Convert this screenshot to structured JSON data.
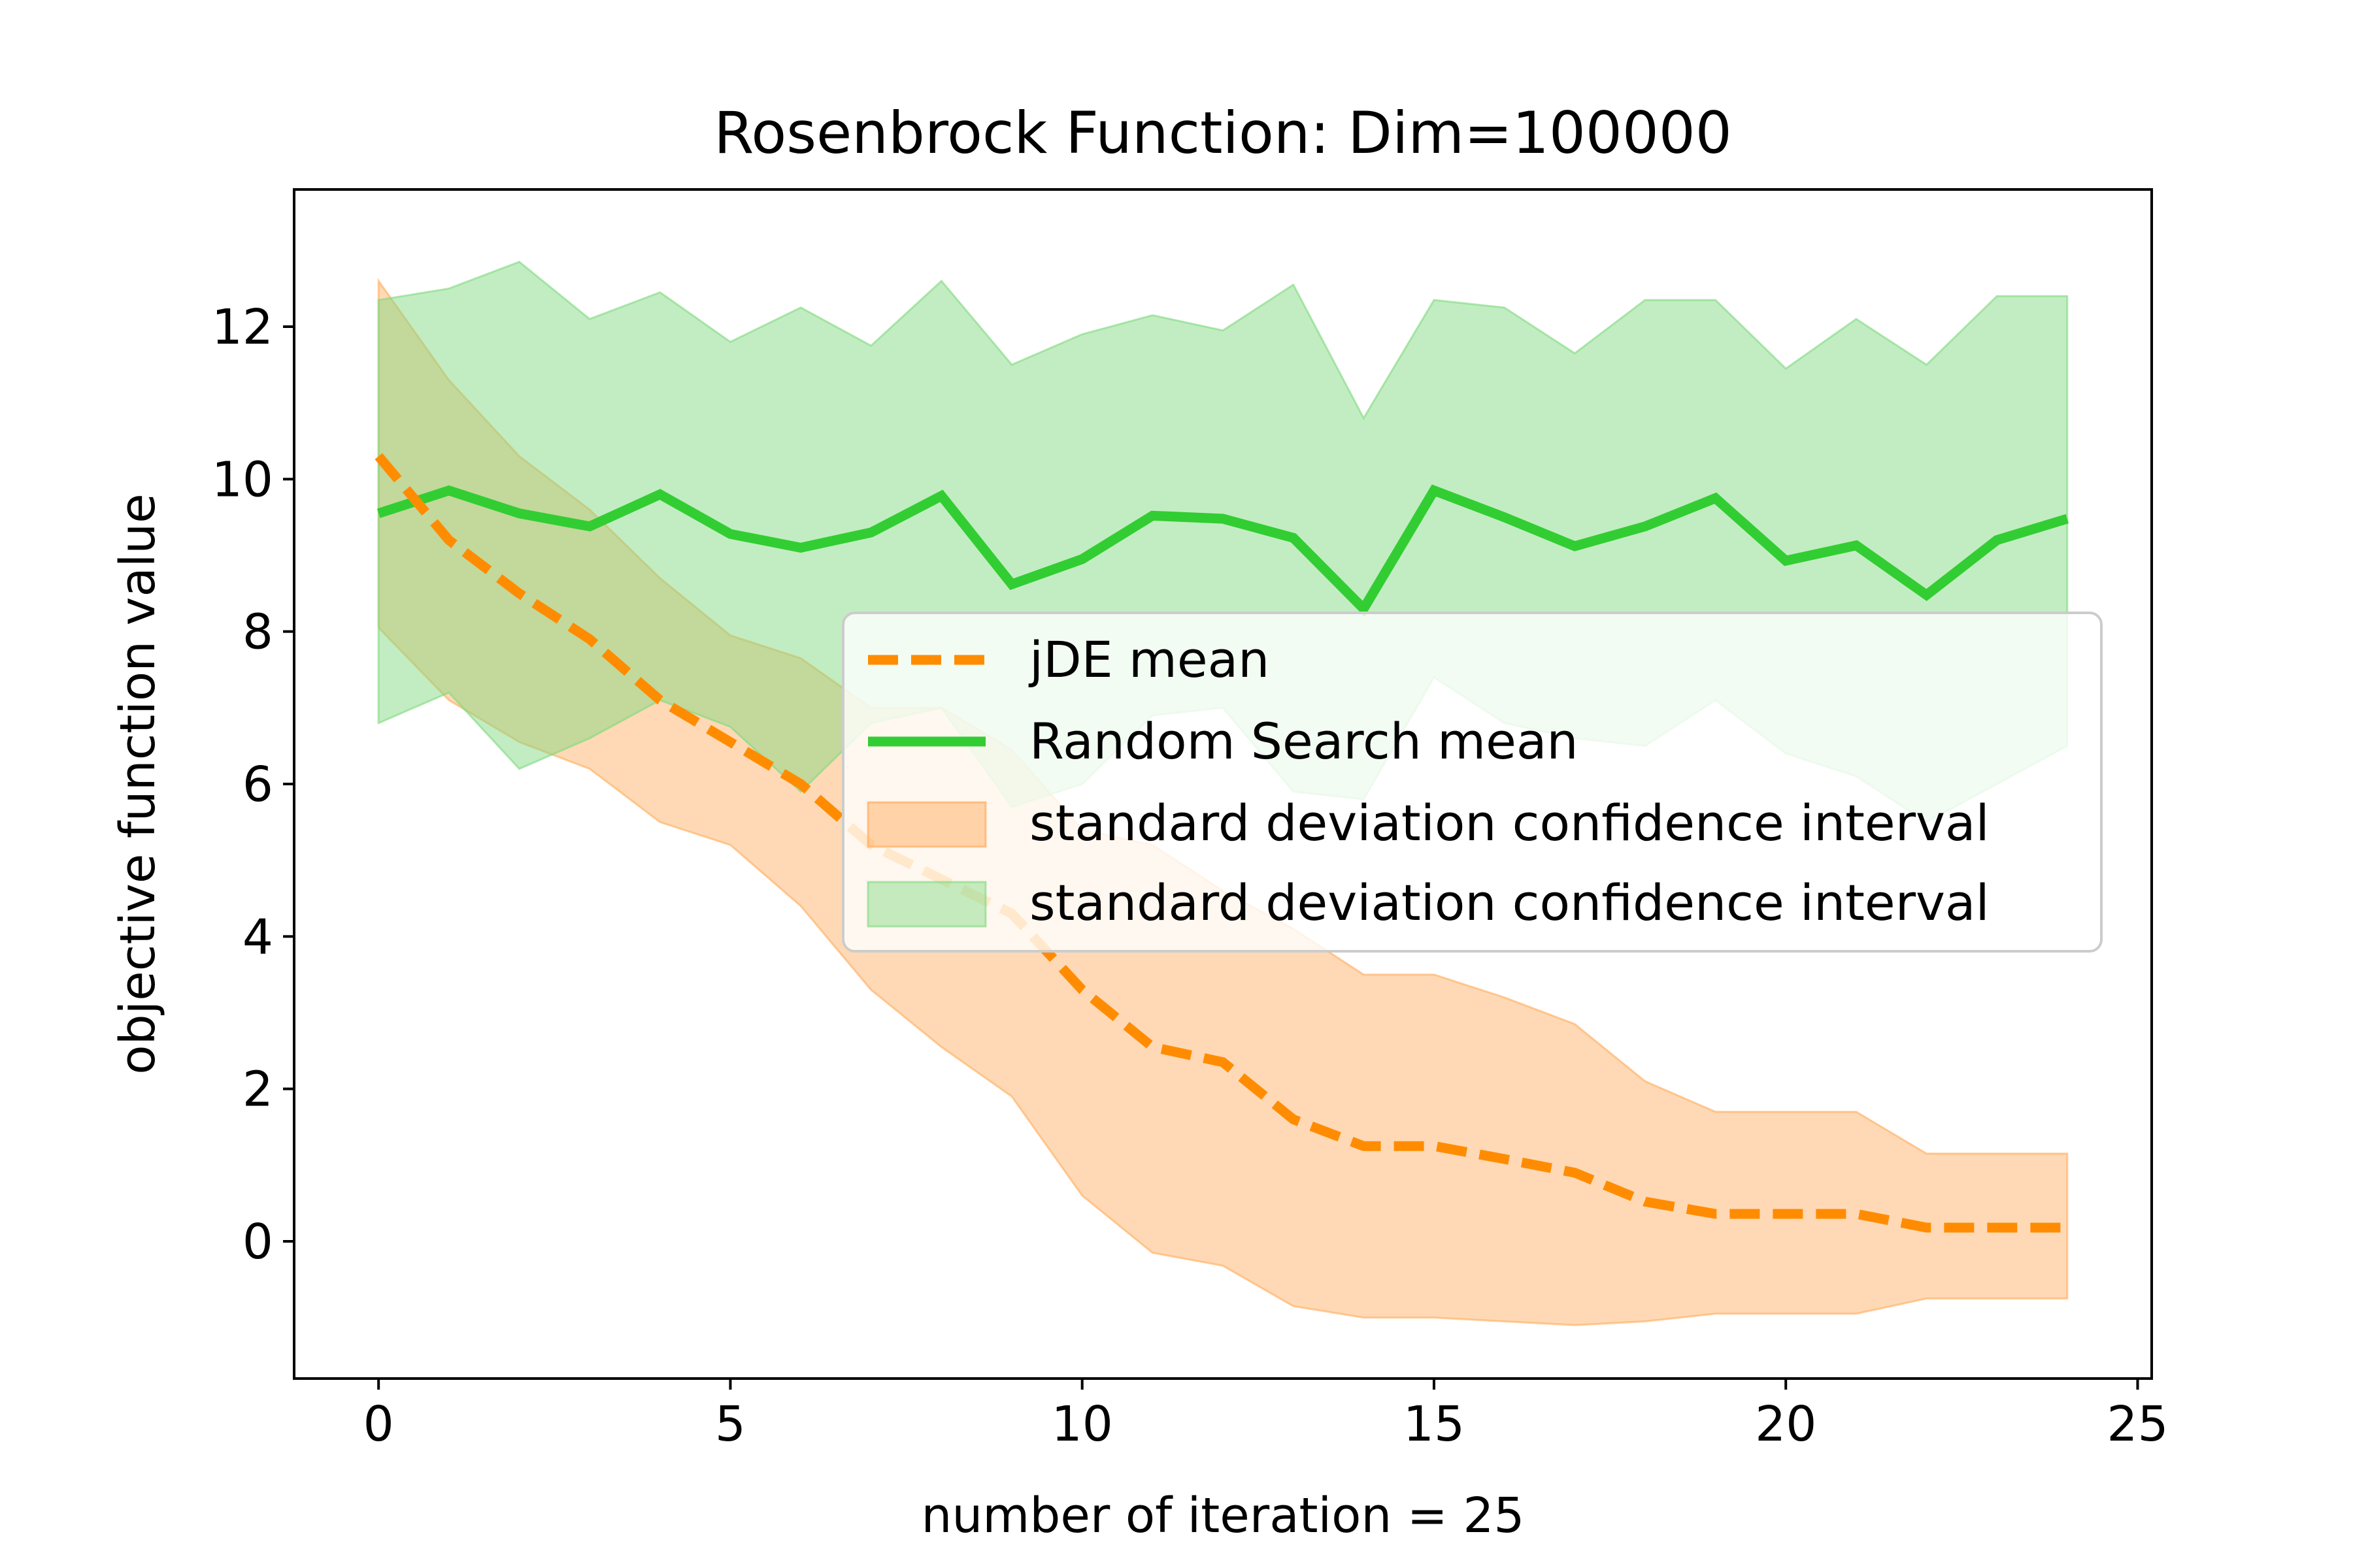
{
  "colors": {
    "jde": "#ff8c00",
    "random": "#32cd32",
    "jde_band": "#ffa54f",
    "random_band": "#7fd97f",
    "axis": "#000000"
  },
  "chart_data": {
    "type": "line",
    "title": "Rosenbrock Function: Dim=100000",
    "xlabel": "number of iteration = 25",
    "ylabel": "objective function value",
    "xlim": [
      -1.2,
      25.2
    ],
    "ylim": [
      -1.8,
      13.8
    ],
    "xticks": [
      0,
      5,
      10,
      15,
      20,
      25
    ],
    "yticks": [
      0,
      2,
      4,
      6,
      8,
      10,
      12
    ],
    "grid": false,
    "legend_position": "center-right",
    "x": [
      0,
      1,
      2,
      3,
      4,
      5,
      6,
      7,
      8,
      9,
      10,
      11,
      12,
      13,
      14,
      15,
      16,
      17,
      18,
      19,
      20,
      21,
      22,
      23,
      24
    ],
    "series": [
      {
        "name": "jDE mean",
        "style": "dashed",
        "color": "#ff8c00",
        "values": [
          10.3,
          9.2,
          8.5,
          7.9,
          7.1,
          6.55,
          6.0,
          5.2,
          4.75,
          4.3,
          3.3,
          2.55,
          2.35,
          1.6,
          1.25,
          1.25,
          1.08,
          0.9,
          0.52,
          0.36,
          0.36,
          0.36,
          0.18,
          0.18,
          0.18
        ]
      },
      {
        "name": "Random Search mean",
        "style": "solid",
        "color": "#32cd32",
        "values": [
          9.55,
          9.85,
          9.55,
          9.38,
          9.8,
          9.28,
          9.1,
          9.3,
          9.78,
          8.62,
          8.95,
          9.52,
          9.48,
          9.23,
          8.3,
          9.85,
          9.5,
          9.12,
          9.38,
          9.75,
          8.93,
          9.13,
          8.48,
          9.2,
          9.48
        ]
      }
    ],
    "bands": [
      {
        "name": "standard deviation confidence interval",
        "color": "#ffa54f",
        "upper": [
          12.6,
          11.3,
          10.3,
          9.6,
          8.7,
          7.95,
          7.65,
          7.0,
          7.0,
          6.45,
          5.4,
          5.2,
          4.6,
          4.1,
          3.5,
          3.5,
          3.2,
          2.85,
          2.1,
          1.7,
          1.7,
          1.7,
          1.15,
          1.15,
          1.15
        ],
        "lower": [
          8.05,
          7.1,
          6.55,
          6.2,
          5.5,
          5.2,
          4.4,
          3.3,
          2.55,
          1.9,
          0.6,
          -0.15,
          -0.32,
          -0.85,
          -1.0,
          -1.0,
          -1.05,
          -1.1,
          -1.05,
          -0.95,
          -0.95,
          -0.95,
          -0.75,
          -0.75,
          -0.75
        ]
      },
      {
        "name": "standard deviation confidence interval",
        "color": "#7fd97f",
        "upper": [
          12.35,
          12.5,
          12.85,
          12.1,
          12.45,
          11.8,
          12.25,
          11.75,
          12.6,
          11.5,
          11.9,
          12.15,
          11.95,
          12.55,
          10.8,
          12.35,
          12.25,
          11.65,
          12.35,
          12.35,
          11.45,
          12.1,
          11.5,
          12.4,
          12.4
        ]
      },
      {
        "name_hidden": true
      }
    ]
  }
}
